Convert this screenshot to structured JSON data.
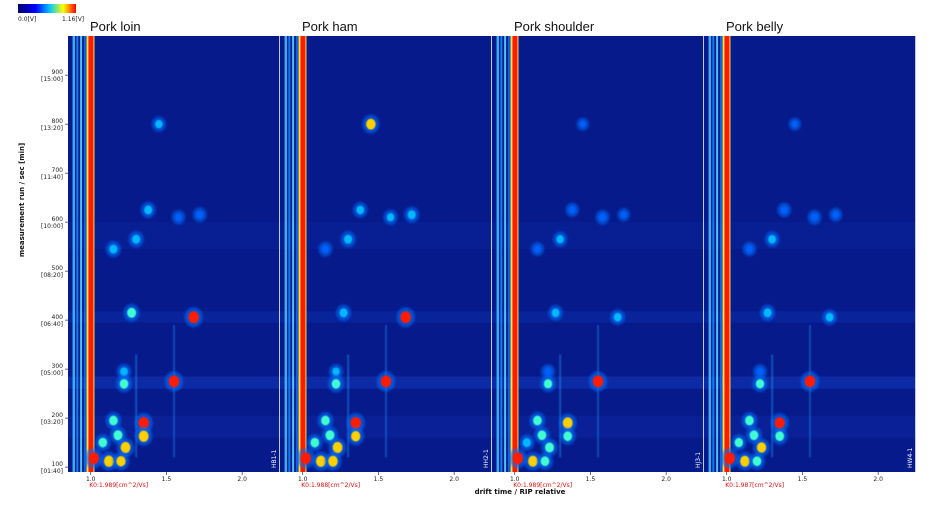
{
  "colorbar": {
    "min_label": "0.0[V]",
    "max_label": "1.16[V]",
    "colors": [
      "#00006a",
      "#0000ff",
      "#00c8ff",
      "#ffff00",
      "#ff0000"
    ]
  },
  "chart_data": {
    "type": "heatmap",
    "xlabel": "drift time / RIP relative",
    "ylabel": "measurement run / sec [min]",
    "xlim": [
      0.85,
      2.25
    ],
    "ylim": [
      90,
      980
    ],
    "background_color": "#061a8c",
    "x_ticks": [
      "1.0",
      "1.5",
      "2.0"
    ],
    "y_ticks": [
      {
        "value": 100,
        "main": "100",
        "sub": "[01:40]"
      },
      {
        "value": 200,
        "main": "200",
        "sub": "[03:20]"
      },
      {
        "value": 300,
        "main": "300",
        "sub": "[05:00]"
      },
      {
        "value": 400,
        "main": "400",
        "sub": "[06:40]"
      },
      {
        "value": 500,
        "main": "500",
        "sub": "[08:20]"
      },
      {
        "value": 600,
        "main": "600",
        "sub": "[10:00]"
      },
      {
        "value": 700,
        "main": "700",
        "sub": "[11:40]"
      },
      {
        "value": 800,
        "main": "800",
        "sub": "[13:20]"
      },
      {
        "value": 900,
        "main": "900",
        "sub": "[15:00]"
      }
    ],
    "panels": [
      {
        "name": "Pork loin",
        "k0_label": "K0:1.989[cm^2/Vs]",
        "side_label": "",
        "last_side_label": "HB1-1"
      },
      {
        "name": "Pork ham",
        "k0_label": "K0:1.988[cm^2/Vs]",
        "side_label": "",
        "last_side_label": "HH2-1"
      },
      {
        "name": "Pork shoulder",
        "k0_label": "K0:1.989[cm^2/Vs]",
        "side_label": "",
        "last_side_label": "HJ3-1"
      },
      {
        "name": "Pork belly",
        "k0_label": "K0:1.987[cm^2/Vs]",
        "side_label": "HW4-1",
        "last_side_label": ""
      }
    ],
    "spots": [
      {
        "x": 1.45,
        "y": 800,
        "i": [
          0.5,
          0.85,
          0.25,
          0.25
        ]
      },
      {
        "x": 1.58,
        "y": 610,
        "i": [
          0.4,
          0.5,
          0.45,
          0.45
        ]
      },
      {
        "x": 1.72,
        "y": 615,
        "i": [
          0.45,
          0.6,
          0.3,
          0.35
        ]
      },
      {
        "x": 1.38,
        "y": 625,
        "i": [
          0.6,
          0.55,
          0.4,
          0.45
        ]
      },
      {
        "x": 1.3,
        "y": 565,
        "i": [
          0.6,
          0.6,
          0.5,
          0.55
        ]
      },
      {
        "x": 1.15,
        "y": 545,
        "i": [
          0.6,
          0.45,
          0.35,
          0.4
        ]
      },
      {
        "x": 1.27,
        "y": 415,
        "i": [
          0.75,
          0.6,
          0.55,
          0.6
        ]
      },
      {
        "x": 1.68,
        "y": 406,
        "i": [
          1.0,
          1.0,
          0.55,
          0.55
        ]
      },
      {
        "x": 1.22,
        "y": 295,
        "i": [
          0.55,
          0.5,
          0.45,
          0.45
        ]
      },
      {
        "x": 1.55,
        "y": 275,
        "i": [
          1.0,
          1.0,
          1.0,
          1.0
        ]
      },
      {
        "x": 1.22,
        "y": 270,
        "i": [
          0.7,
          0.7,
          0.65,
          0.65
        ]
      },
      {
        "x": 1.35,
        "y": 190,
        "i": [
          1.0,
          1.0,
          0.9,
          0.95
        ]
      },
      {
        "x": 1.15,
        "y": 195,
        "i": [
          0.7,
          0.7,
          0.7,
          0.7
        ]
      },
      {
        "x": 1.18,
        "y": 165,
        "i": [
          0.75,
          0.75,
          0.7,
          0.7
        ]
      },
      {
        "x": 1.35,
        "y": 163,
        "i": [
          0.9,
          0.8,
          0.7,
          0.7
        ]
      },
      {
        "x": 1.23,
        "y": 140,
        "i": [
          0.9,
          0.9,
          0.75,
          0.8
        ]
      },
      {
        "x": 1.08,
        "y": 150,
        "i": [
          0.7,
          0.7,
          0.6,
          0.65
        ]
      },
      {
        "x": 1.12,
        "y": 112,
        "i": [
          0.9,
          0.9,
          0.85,
          0.85
        ]
      },
      {
        "x": 1.2,
        "y": 112,
        "i": [
          0.8,
          0.85,
          0.7,
          0.7
        ]
      },
      {
        "x": 1.02,
        "y": 118,
        "i": [
          1.0,
          1.0,
          1.0,
          1.0
        ]
      }
    ],
    "streaks": [
      {
        "x": 1.55,
        "y0": 120,
        "y1": 390,
        "i": 0.35
      },
      {
        "x": 1.3,
        "y0": 120,
        "y1": 330,
        "i": 0.4
      }
    ]
  }
}
